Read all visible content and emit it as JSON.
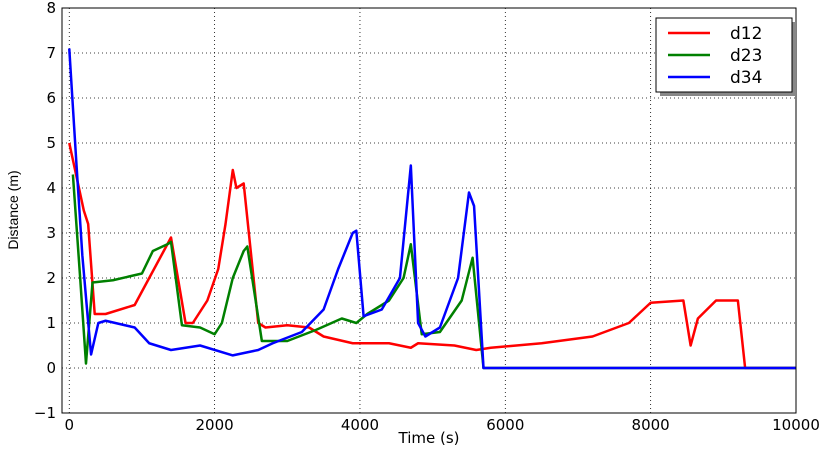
{
  "chart_data": {
    "type": "line",
    "x_label": "Time (s)",
    "y_label": "Distance (m)",
    "xlim": [
      -100,
      10000
    ],
    "ylim": [
      -1,
      8
    ],
    "xticks": [
      0,
      2000,
      4000,
      6000,
      8000,
      10000
    ],
    "yticks": [
      {
        "value": -1,
        "label": "−1"
      },
      0,
      1,
      2,
      3,
      4,
      5,
      6,
      7,
      8
    ],
    "grid": true,
    "legend": "upper right",
    "series": [
      {
        "name": "d12",
        "color": "#ff0000",
        "x": [
          0,
          200,
          260,
          350,
          500,
          900,
          1100,
          1300,
          1400,
          1600,
          1700,
          1900,
          2050,
          2150,
          2250,
          2300,
          2400,
          2600,
          2700,
          3000,
          3300,
          3500,
          3900,
          4400,
          4700,
          4800,
          5300,
          5600,
          5800,
          6500,
          7200,
          7700,
          8000,
          8450,
          8550,
          8650,
          8900,
          9200,
          9300,
          10000
        ],
        "values": [
          5,
          3.5,
          3.2,
          1.2,
          1.2,
          1.4,
          2.0,
          2.6,
          2.9,
          1.0,
          1.0,
          1.5,
          2.2,
          3.2,
          4.4,
          4.0,
          4.1,
          1.0,
          0.9,
          0.95,
          0.9,
          0.7,
          0.55,
          0.55,
          0.45,
          0.55,
          0.5,
          0.4,
          0.45,
          0.55,
          0.7,
          1.0,
          1.45,
          1.5,
          0.5,
          1.1,
          1.5,
          1.5,
          0,
          0
        ]
      },
      {
        "name": "d23",
        "color": "#008000",
        "x": [
          50,
          150,
          230,
          320,
          600,
          1000,
          1150,
          1350,
          1400,
          1550,
          1800,
          2000,
          2100,
          2250,
          2400,
          2450,
          2650,
          3000,
          3400,
          3750,
          3950,
          4100,
          4400,
          4600,
          4700,
          4850,
          5100,
          5400,
          5550,
          5700,
          10000
        ],
        "values": [
          4.3,
          2.0,
          0.1,
          1.9,
          1.95,
          2.1,
          2.6,
          2.75,
          2.8,
          0.95,
          0.9,
          0.75,
          1.0,
          2.0,
          2.6,
          2.7,
          0.6,
          0.6,
          0.85,
          1.1,
          1.0,
          1.2,
          1.5,
          2.0,
          2.75,
          0.75,
          0.8,
          1.5,
          2.45,
          0,
          0
        ]
      },
      {
        "name": "d34",
        "color": "#0000ff",
        "x": [
          0,
          100,
          180,
          250,
          300,
          400,
          500,
          900,
          1100,
          1400,
          1800,
          2250,
          2600,
          2800,
          3200,
          3500,
          3700,
          3900,
          3950,
          4050,
          4300,
          4550,
          4700,
          4800,
          4900,
          5100,
          5350,
          5500,
          5570,
          5700,
          10000
        ],
        "values": [
          7.1,
          4.5,
          2.5,
          1.2,
          0.3,
          1.0,
          1.05,
          0.9,
          0.55,
          0.4,
          0.5,
          0.28,
          0.4,
          0.55,
          0.8,
          1.3,
          2.2,
          3.0,
          3.05,
          1.15,
          1.3,
          2.0,
          4.5,
          1.0,
          0.7,
          0.9,
          2.0,
          3.9,
          3.6,
          0,
          0
        ]
      }
    ]
  }
}
